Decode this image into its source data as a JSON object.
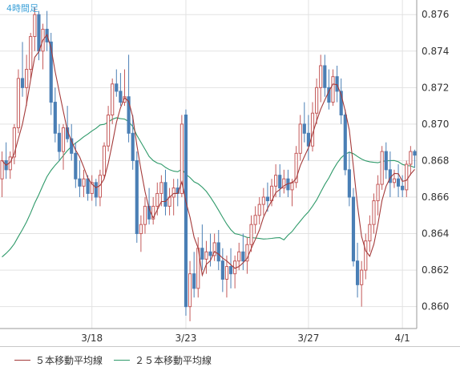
{
  "timeframe_label": "4時間足",
  "legend": {
    "ma5_label": "５本移動平均線",
    "ma25_label": "２５本移動平均線"
  },
  "colors": {
    "up": "#c45a5a",
    "down": "#4a7fb5",
    "ma5": "#a43a3a",
    "ma25": "#2f9a6a",
    "grid": "#e2e2e2",
    "axis": "#9a9a9a",
    "label": "#333333",
    "title": "#3aa0d8"
  },
  "chart_data": {
    "type": "candlestick",
    "title": "",
    "xlabel": "",
    "ylabel": "",
    "ylim": [
      0.8588,
      0.8768
    ],
    "y_ticks": [
      0.86,
      0.862,
      0.864,
      0.866,
      0.868,
      0.87,
      0.872,
      0.874,
      0.876
    ],
    "x_ticks": [
      {
        "label": "3/18",
        "index": 22
      },
      {
        "label": "3/23",
        "index": 45
      },
      {
        "label": "3/27",
        "index": 75
      },
      {
        "label": "4/1",
        "index": 98
      }
    ],
    "candles": [
      [
        0.867,
        0.8685,
        0.866,
        0.868
      ],
      [
        0.868,
        0.869,
        0.867,
        0.8675
      ],
      [
        0.8675,
        0.8685,
        0.867,
        0.8682
      ],
      [
        0.8682,
        0.87,
        0.8678,
        0.8698
      ],
      [
        0.8698,
        0.873,
        0.8695,
        0.8725
      ],
      [
        0.8725,
        0.8745,
        0.8715,
        0.872
      ],
      [
        0.872,
        0.8738,
        0.871,
        0.873
      ],
      [
        0.873,
        0.875,
        0.8725,
        0.8748
      ],
      [
        0.8748,
        0.8764,
        0.874,
        0.876
      ],
      [
        0.876,
        0.8762,
        0.8735,
        0.874
      ],
      [
        0.874,
        0.8755,
        0.873,
        0.8752
      ],
      [
        0.8752,
        0.8762,
        0.874,
        0.8745
      ],
      [
        0.8745,
        0.875,
        0.8705,
        0.8712
      ],
      [
        0.8712,
        0.872,
        0.869,
        0.8695
      ],
      [
        0.8695,
        0.87,
        0.868,
        0.8685
      ],
      [
        0.8685,
        0.87,
        0.8675,
        0.8698
      ],
      [
        0.8698,
        0.871,
        0.869,
        0.8692
      ],
      [
        0.8692,
        0.87,
        0.868,
        0.8684
      ],
      [
        0.8684,
        0.869,
        0.8665,
        0.867
      ],
      [
        0.867,
        0.868,
        0.866,
        0.8666
      ],
      [
        0.8666,
        0.8675,
        0.866,
        0.867
      ],
      [
        0.867,
        0.8672,
        0.8658,
        0.8662
      ],
      [
        0.8662,
        0.8672,
        0.8658,
        0.8668
      ],
      [
        0.8668,
        0.867,
        0.8655,
        0.866
      ],
      [
        0.866,
        0.8675,
        0.8655,
        0.8672
      ],
      [
        0.8672,
        0.869,
        0.867,
        0.8688
      ],
      [
        0.8688,
        0.871,
        0.8685,
        0.8705
      ],
      [
        0.8705,
        0.8725,
        0.87,
        0.8722
      ],
      [
        0.8722,
        0.873,
        0.8715,
        0.8718
      ],
      [
        0.8718,
        0.8728,
        0.871,
        0.8712
      ],
      [
        0.8712,
        0.873,
        0.871,
        0.8715
      ],
      [
        0.8715,
        0.8738,
        0.869,
        0.8695
      ],
      [
        0.8695,
        0.8705,
        0.8675,
        0.868
      ],
      [
        0.868,
        0.8685,
        0.8635,
        0.864
      ],
      [
        0.864,
        0.865,
        0.863,
        0.8645
      ],
      [
        0.8645,
        0.866,
        0.864,
        0.8655
      ],
      [
        0.8655,
        0.8665,
        0.8645,
        0.8648
      ],
      [
        0.8648,
        0.866,
        0.8645,
        0.8655
      ],
      [
        0.8655,
        0.8668,
        0.865,
        0.8662
      ],
      [
        0.8662,
        0.8672,
        0.8655,
        0.8668
      ],
      [
        0.8668,
        0.8675,
        0.865,
        0.8655
      ],
      [
        0.8655,
        0.8665,
        0.865,
        0.866
      ],
      [
        0.866,
        0.867,
        0.865,
        0.8665
      ],
      [
        0.8665,
        0.867,
        0.8655,
        0.8662
      ],
      [
        0.8662,
        0.8705,
        0.866,
        0.87
      ],
      [
        0.8705,
        0.8708,
        0.8595,
        0.86
      ],
      [
        0.86,
        0.8625,
        0.8592,
        0.8618
      ],
      [
        0.8618,
        0.863,
        0.8605,
        0.861
      ],
      [
        0.861,
        0.8638,
        0.8605,
        0.8632
      ],
      [
        0.8632,
        0.8645,
        0.862,
        0.8626
      ],
      [
        0.8626,
        0.8636,
        0.8618,
        0.863
      ],
      [
        0.863,
        0.864,
        0.8622,
        0.8628
      ],
      [
        0.8628,
        0.864,
        0.8625,
        0.8635
      ],
      [
        0.8635,
        0.8642,
        0.862,
        0.8625
      ],
      [
        0.8625,
        0.8632,
        0.8608,
        0.8615
      ],
      [
        0.8615,
        0.8628,
        0.8605,
        0.8622
      ],
      [
        0.8622,
        0.8632,
        0.861,
        0.8618
      ],
      [
        0.8618,
        0.8628,
        0.861,
        0.8625
      ],
      [
        0.8625,
        0.8635,
        0.862,
        0.863
      ],
      [
        0.863,
        0.864,
        0.862,
        0.8625
      ],
      [
        0.8625,
        0.8638,
        0.8618,
        0.8634
      ],
      [
        0.8634,
        0.865,
        0.863,
        0.8645
      ],
      [
        0.8645,
        0.8655,
        0.864,
        0.865
      ],
      [
        0.865,
        0.866,
        0.8645,
        0.8656
      ],
      [
        0.8656,
        0.8665,
        0.865,
        0.866
      ],
      [
        0.866,
        0.8668,
        0.8652,
        0.8658
      ],
      [
        0.8658,
        0.867,
        0.8655,
        0.8666
      ],
      [
        0.8666,
        0.8678,
        0.866,
        0.8672
      ],
      [
        0.8672,
        0.8678,
        0.866,
        0.8665
      ],
      [
        0.8665,
        0.8675,
        0.8662,
        0.867
      ],
      [
        0.867,
        0.8675,
        0.866,
        0.8664
      ],
      [
        0.8664,
        0.867,
        0.8655,
        0.8668
      ],
      [
        0.8668,
        0.8688,
        0.8665,
        0.8684
      ],
      [
        0.8684,
        0.8705,
        0.868,
        0.87
      ],
      [
        0.87,
        0.8712,
        0.869,
        0.8695
      ],
      [
        0.8695,
        0.8705,
        0.868,
        0.8688
      ],
      [
        0.8688,
        0.8712,
        0.8685,
        0.8706
      ],
      [
        0.8706,
        0.8725,
        0.87,
        0.872
      ],
      [
        0.872,
        0.8738,
        0.8712,
        0.8732
      ],
      [
        0.8732,
        0.8738,
        0.8715,
        0.872
      ],
      [
        0.872,
        0.873,
        0.8708,
        0.8712
      ],
      [
        0.8712,
        0.873,
        0.871,
        0.8726
      ],
      [
        0.8726,
        0.8732,
        0.8712,
        0.8718
      ],
      [
        0.8718,
        0.8725,
        0.87,
        0.8705
      ],
      [
        0.8705,
        0.8708,
        0.8672,
        0.8675
      ],
      [
        0.8675,
        0.8685,
        0.8655,
        0.866
      ],
      [
        0.866,
        0.8665,
        0.8622,
        0.8625
      ],
      [
        0.8625,
        0.8635,
        0.8605,
        0.8612
      ],
      [
        0.8612,
        0.8625,
        0.86,
        0.862
      ],
      [
        0.862,
        0.864,
        0.8615,
        0.8636
      ],
      [
        0.8636,
        0.865,
        0.863,
        0.8645
      ],
      [
        0.8645,
        0.8662,
        0.864,
        0.8658
      ],
      [
        0.8658,
        0.8672,
        0.865,
        0.8667
      ],
      [
        0.8667,
        0.8688,
        0.8664,
        0.8685
      ],
      [
        0.8685,
        0.869,
        0.867,
        0.8675
      ],
      [
        0.8675,
        0.8685,
        0.866,
        0.8668
      ],
      [
        0.8668,
        0.8675,
        0.8665,
        0.867
      ],
      [
        0.867,
        0.8678,
        0.866,
        0.8666
      ],
      [
        0.8666,
        0.8672,
        0.866,
        0.8664
      ],
      [
        0.8664,
        0.868,
        0.866,
        0.8678
      ],
      [
        0.8678,
        0.8688,
        0.8672,
        0.8685
      ],
      [
        0.8685,
        0.8686,
        0.8676,
        0.8683
      ]
    ]
  }
}
